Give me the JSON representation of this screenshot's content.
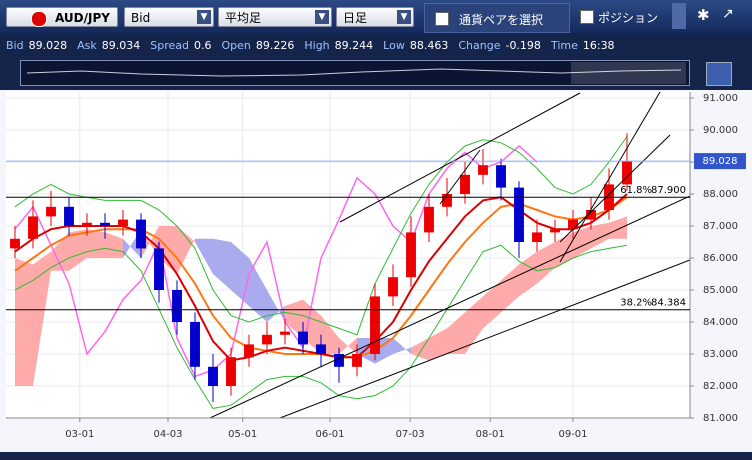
{
  "toolbar": {
    "pair": "AUD/JPY",
    "price_type": "Bid",
    "candle_type": "平均足",
    "timeframe": "日足",
    "select_pair": "通貨ペアを選択",
    "position": "ポジション"
  },
  "quote": [
    {
      "label": "Bid",
      "value": "89.028"
    },
    {
      "label": "Ask",
      "value": "89.034"
    },
    {
      "label": "Spread",
      "value": "0.6"
    },
    {
      "label": "Open",
      "value": "89.226"
    },
    {
      "label": "High",
      "value": "89.244"
    },
    {
      "label": "Low",
      "value": "88.463"
    },
    {
      "label": "Change",
      "value": "-0.198"
    },
    {
      "label": "Time",
      "value": "16:38"
    }
  ],
  "chart_data": {
    "type": "candlestick",
    "grid": true,
    "up_color": "#ee0000",
    "down_color": "#0000cc",
    "xlim": [
      0,
      76
    ],
    "xticks": [
      {
        "value": 8.2,
        "label": "03-01"
      },
      {
        "value": 18,
        "label": "04-03"
      },
      {
        "value": 26.3,
        "label": "05-01"
      },
      {
        "value": 36,
        "label": "06-01"
      },
      {
        "value": 44.9,
        "label": "07-03"
      },
      {
        "value": 53.8,
        "label": "08-01"
      },
      {
        "value": 63,
        "label": "09-01"
      }
    ],
    "ylim": [
      81,
      91
    ],
    "yticks": [
      {
        "value": 81,
        "label": "81.000"
      },
      {
        "value": 82,
        "label": "82.000"
      },
      {
        "value": 83,
        "label": "83.000"
      },
      {
        "value": 84,
        "label": "84.000"
      },
      {
        "value": 85,
        "label": "85.000"
      },
      {
        "value": 86,
        "label": "86.000"
      },
      {
        "value": 87,
        "label": "87.000"
      },
      {
        "value": 88,
        "label": "88.000"
      },
      {
        "value": 89,
        "label": "89.000"
      },
      {
        "value": 90,
        "label": "90.000"
      },
      {
        "value": 91,
        "label": "91.000"
      }
    ],
    "x": [
      1,
      3,
      5,
      7,
      9,
      11,
      13,
      15,
      17,
      19,
      21,
      23,
      25,
      27,
      29,
      31,
      33,
      35,
      37,
      39,
      41,
      43,
      45,
      47,
      49,
      51,
      53,
      55,
      57,
      59,
      61,
      63,
      65,
      67,
      69
    ],
    "open": [
      86.3,
      86.6,
      87.3,
      87.6,
      87.0,
      87.1,
      87.0,
      87.2,
      86.3,
      85.0,
      84.0,
      82.6,
      82.0,
      82.9,
      83.3,
      83.6,
      83.7,
      83.3,
      83.0,
      82.6,
      83.0,
      84.8,
      85.4,
      86.8,
      87.6,
      88.0,
      88.6,
      88.9,
      88.2,
      86.5,
      86.8,
      86.9,
      87.2,
      87.5,
      88.3
    ],
    "high": [
      87.0,
      87.8,
      88.1,
      87.9,
      87.4,
      87.4,
      87.5,
      87.4,
      86.5,
      85.3,
      84.3,
      83.0,
      83.2,
      83.6,
      84.0,
      84.1,
      84.0,
      83.6,
      83.2,
      83.3,
      85.2,
      85.8,
      87.3,
      88.0,
      88.5,
      89.0,
      89.4,
      89.1,
      88.4,
      87.2,
      87.2,
      87.5,
      87.9,
      88.8,
      89.9
    ],
    "low": [
      86.0,
      86.3,
      87.0,
      86.7,
      86.7,
      86.6,
      86.7,
      86.0,
      84.6,
      83.6,
      82.2,
      81.5,
      81.7,
      82.6,
      83.0,
      83.3,
      83.0,
      82.6,
      82.1,
      82.3,
      82.8,
      84.5,
      85.1,
      86.5,
      87.3,
      87.7,
      88.3,
      87.8,
      86.0,
      86.2,
      86.5,
      86.6,
      86.9,
      87.2,
      88.1
    ],
    "close": [
      86.6,
      87.3,
      87.6,
      87.0,
      87.1,
      87.0,
      87.2,
      86.3,
      85.0,
      84.0,
      82.6,
      82.0,
      82.9,
      83.3,
      83.6,
      83.7,
      83.3,
      83.0,
      82.6,
      83.0,
      84.8,
      85.4,
      86.8,
      87.6,
      88.0,
      88.6,
      88.9,
      88.2,
      86.5,
      86.8,
      86.9,
      87.2,
      87.5,
      88.3,
      89.028
    ],
    "cloud": {
      "colors": [
        "#ffaaaa",
        "#aaaaee"
      ],
      "span_a": [
        86.0,
        85.8,
        86.2,
        86.8,
        86.9,
        86.8,
        86.6,
        86.0,
        87.0,
        87.0,
        86.5,
        85.5,
        85.0,
        84.5,
        84.0,
        84.5,
        84.7,
        84.2,
        83.5,
        83.0,
        82.7,
        83.0,
        83.2,
        83.5,
        83.8,
        84.3,
        84.8,
        85.3,
        85.8,
        86.2,
        86.5,
        86.8,
        87.0,
        87.1,
        87.3
      ],
      "span_b": [
        82.0,
        82.0,
        85.6,
        85.6,
        86.0,
        86.0,
        86.0,
        86.9,
        86.0,
        85.5,
        86.6,
        86.6,
        86.5,
        86.0,
        85.0,
        84.0,
        83.5,
        83.0,
        83.0,
        83.5,
        83.5,
        83.5,
        83.0,
        82.8,
        83.0,
        83.0,
        83.8,
        84.3,
        84.8,
        85.2,
        85.7,
        86.0,
        86.3,
        86.6,
        86.6
      ]
    },
    "lines": [
      {
        "color": "#ff66ee",
        "width": 1.5,
        "values": [
          86.9,
          87.6,
          86.4,
          85.2,
          83.0,
          83.7,
          84.7,
          85.3,
          86.5,
          83.5,
          82.3,
          82.5,
          83.0,
          85.5,
          86.5,
          84.0,
          83.2,
          86.0,
          87.2,
          88.5,
          88.0,
          87.0,
          86.5,
          88.0,
          88.8,
          89.3,
          88.8,
          89.0,
          89.5,
          89.0,
          null,
          null,
          null,
          null,
          null
        ]
      },
      {
        "color": "#33bb33",
        "width": 1,
        "values": [
          87.6,
          88.0,
          88.3,
          88.0,
          87.9,
          87.8,
          87.8,
          87.8,
          87.5,
          87.0,
          86.3,
          85.0,
          84.2,
          84.0,
          84.2,
          84.3,
          84.2,
          84.0,
          83.8,
          83.6,
          85.2,
          86.3,
          87.4,
          88.3,
          89.0,
          89.5,
          89.7,
          89.6,
          89.3,
          88.8,
          88.2,
          88.0,
          88.3,
          89.0,
          89.8
        ]
      },
      {
        "color": "#33bb33",
        "width": 1,
        "values": [
          85.0,
          85.3,
          85.7,
          86.0,
          86.2,
          86.3,
          86.2,
          85.6,
          84.4,
          83.2,
          82.2,
          81.3,
          81.4,
          81.8,
          82.2,
          82.3,
          82.3,
          82.1,
          81.7,
          81.6,
          81.7,
          82.0,
          82.6,
          83.5,
          84.4,
          85.3,
          86.2,
          86.4,
          85.9,
          85.6,
          85.7,
          86.0,
          86.2,
          86.3,
          86.4
        ]
      },
      {
        "color": "#ff7711",
        "width": 2,
        "values": [
          85.6,
          86.0,
          86.4,
          86.7,
          86.8,
          86.9,
          86.9,
          86.9,
          86.6,
          86.0,
          85.2,
          84.2,
          83.5,
          83.2,
          83.1,
          83.0,
          83.0,
          83.0,
          82.9,
          82.9,
          83.1,
          83.5,
          84.2,
          85.0,
          85.8,
          86.5,
          87.1,
          87.6,
          87.7,
          87.5,
          87.3,
          87.2,
          87.3,
          87.5,
          87.9
        ]
      },
      {
        "color": "#dd0000",
        "width": 2,
        "values": [
          86.2,
          86.6,
          86.9,
          87.0,
          87.0,
          87.0,
          87.0,
          86.8,
          86.3,
          85.5,
          84.5,
          83.4,
          82.8,
          82.9,
          83.1,
          83.2,
          83.1,
          83.0,
          82.9,
          82.9,
          83.4,
          84.0,
          85.0,
          85.9,
          86.6,
          87.3,
          87.8,
          87.9,
          87.5,
          87.1,
          86.9,
          86.9,
          87.1,
          87.5,
          88.0
        ]
      }
    ],
    "fib_levels": [
      {
        "label": "61.8%",
        "value": 87.9,
        "value_label": "87.900"
      },
      {
        "label": "38.2%",
        "value": 84.384,
        "value_label": "84.384"
      }
    ],
    "last_price": {
      "value": 89.028,
      "label": "89.028"
    }
  }
}
